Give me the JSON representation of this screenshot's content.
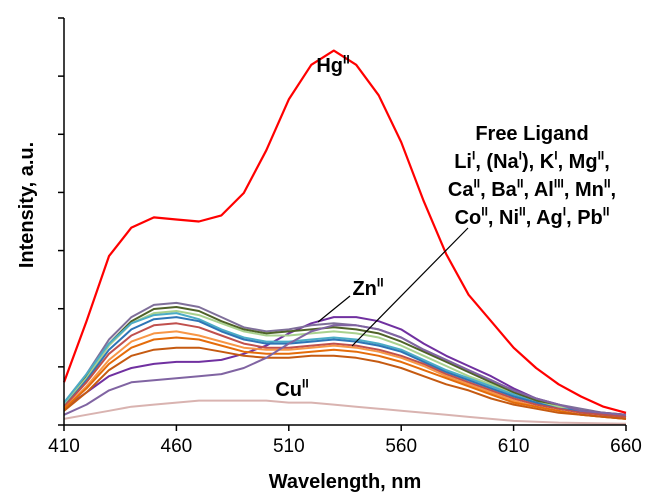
{
  "chart_data": {
    "type": "line",
    "xlabel": "Wavelength, nm",
    "ylabel": "Intensity, a.u.",
    "xlim": [
      410,
      660
    ],
    "ylim": [
      0,
      100
    ],
    "x_ticks": [
      "410",
      "460",
      "510",
      "560",
      "610",
      "660"
    ],
    "y_ticks_labeled": false,
    "grid": false,
    "legend": "none",
    "annotations": {
      "hg": {
        "base": "Hg",
        "sup": "II"
      },
      "zn": {
        "base": "Zn",
        "sup": "II"
      },
      "cu": {
        "base": "Cu",
        "sup": "II"
      },
      "group_line1": "Free Ligand",
      "group_line2": [
        {
          "base": "Li",
          "sup": "I"
        },
        {
          "base": ", (Na",
          "sup": "I"
        },
        {
          "base": "), K",
          "sup": "I"
        },
        {
          "base": ", Mg",
          "sup": "II"
        },
        {
          "base": ",",
          "sup": ""
        }
      ],
      "group_line3": [
        {
          "base": "Ca",
          "sup": "II"
        },
        {
          "base": ", Ba",
          "sup": "II"
        },
        {
          "base": ", Al",
          "sup": "III"
        },
        {
          "base": ", Mn",
          "sup": "II"
        },
        {
          "base": ",",
          "sup": ""
        }
      ],
      "group_line4": [
        {
          "base": "Co",
          "sup": "II"
        },
        {
          "base": ", Ni",
          "sup": "II"
        },
        {
          "base": ", Ag",
          "sup": "I"
        },
        {
          "base": ", Pb",
          "sup": "II"
        }
      ]
    },
    "x": [
      410,
      420,
      430,
      440,
      450,
      460,
      470,
      480,
      490,
      500,
      510,
      520,
      530,
      540,
      550,
      560,
      570,
      580,
      590,
      600,
      610,
      620,
      630,
      640,
      650,
      660
    ],
    "series": [
      {
        "color": "#ff0000",
        "values": [
          10.5,
          25.5,
          41.5,
          48.5,
          51.0,
          50.5,
          50.0,
          51.5,
          57.0,
          67.5,
          80.0,
          88.5,
          92.0,
          88.5,
          81.0,
          69.5,
          55.0,
          42.0,
          32.0,
          25.5,
          19.0,
          14.0,
          10.0,
          7.0,
          4.5,
          3.0
        ]
      },
      {
        "color": "#7030a0",
        "values": [
          4.0,
          8.0,
          12.0,
          14.0,
          15.0,
          15.5,
          15.5,
          16.0,
          17.5,
          19.5,
          22.5,
          25.0,
          26.5,
          26.5,
          25.5,
          23.5,
          20.0,
          17.0,
          14.5,
          12.0,
          9.0,
          6.5,
          5.0,
          3.5,
          2.5,
          2.0
        ]
      },
      {
        "color": "#7f6f9a",
        "values": [
          5.5,
          12.5,
          21.0,
          26.5,
          29.5,
          30.0,
          29.0,
          26.5,
          24.0,
          23.0,
          23.5,
          24.5,
          25.0,
          24.5,
          23.5,
          21.5,
          18.5,
          16.0,
          13.5,
          11.0,
          8.5,
          6.5,
          5.0,
          4.0,
          3.0,
          2.5
        ]
      },
      {
        "color": "#4f6228",
        "values": [
          5.0,
          12.0,
          20.0,
          25.5,
          28.5,
          29.0,
          28.0,
          25.5,
          23.5,
          22.5,
          23.0,
          23.5,
          24.0,
          23.5,
          22.5,
          20.5,
          18.0,
          15.5,
          13.0,
          10.5,
          8.0,
          6.0,
          4.5,
          3.5,
          3.0,
          2.5
        ]
      },
      {
        "color": "#a9d18e",
        "values": [
          5.0,
          11.5,
          19.5,
          25.0,
          27.5,
          28.0,
          27.0,
          25.0,
          23.0,
          22.0,
          22.0,
          22.5,
          23.0,
          22.5,
          21.5,
          19.5,
          17.0,
          14.5,
          12.0,
          10.0,
          7.5,
          5.5,
          4.5,
          3.5,
          2.5,
          2.0
        ]
      },
      {
        "color": "#4bacc6",
        "values": [
          5.5,
          12.5,
          20.0,
          25.0,
          27.0,
          27.5,
          26.0,
          23.5,
          21.5,
          20.5,
          20.5,
          21.0,
          21.5,
          21.0,
          20.0,
          18.5,
          16.0,
          13.5,
          11.5,
          9.5,
          7.5,
          5.5,
          4.0,
          3.5,
          2.5,
          2.0
        ]
      },
      {
        "color": "#2e75b6",
        "values": [
          4.5,
          11.0,
          18.5,
          23.5,
          26.0,
          26.5,
          25.5,
          23.0,
          21.0,
          20.0,
          20.0,
          20.5,
          21.0,
          20.5,
          19.5,
          18.0,
          15.5,
          13.0,
          11.0,
          9.0,
          7.0,
          5.5,
          4.0,
          3.5,
          2.5,
          2.0
        ]
      },
      {
        "color": "#c0504d",
        "values": [
          4.5,
          10.5,
          17.5,
          22.0,
          24.5,
          25.0,
          24.0,
          22.0,
          20.0,
          19.0,
          19.0,
          19.5,
          20.0,
          19.5,
          18.5,
          17.0,
          15.0,
          12.5,
          10.5,
          8.5,
          6.5,
          5.0,
          4.0,
          3.0,
          2.5,
          2.0
        ]
      },
      {
        "color": "#f79646",
        "values": [
          4.0,
          9.5,
          16.0,
          20.5,
          22.5,
          23.0,
          22.0,
          20.5,
          19.0,
          18.5,
          18.5,
          19.0,
          19.5,
          19.0,
          18.0,
          16.5,
          14.5,
          12.0,
          10.0,
          8.0,
          6.0,
          4.5,
          3.5,
          2.5,
          2.0,
          1.5
        ]
      },
      {
        "color": "#e46c0a",
        "values": [
          4.0,
          9.0,
          15.0,
          19.0,
          21.0,
          21.5,
          21.0,
          19.5,
          18.0,
          17.5,
          17.5,
          18.0,
          18.5,
          18.0,
          17.0,
          15.5,
          13.5,
          11.5,
          9.5,
          7.5,
          5.5,
          4.5,
          3.5,
          2.5,
          2.0,
          1.5
        ]
      },
      {
        "color": "#c55a11",
        "values": [
          3.5,
          8.0,
          13.5,
          17.0,
          18.5,
          19.0,
          19.0,
          18.0,
          17.0,
          16.5,
          16.5,
          17.0,
          17.0,
          16.5,
          15.5,
          14.0,
          12.0,
          10.0,
          8.5,
          6.5,
          5.0,
          4.0,
          3.0,
          2.5,
          2.0,
          1.5
        ]
      },
      {
        "color": "#8064a2",
        "values": [
          2.5,
          5.0,
          8.5,
          10.5,
          11.0,
          11.5,
          12.0,
          12.5,
          14.0,
          16.5,
          20.0,
          23.0,
          24.5,
          24.5,
          23.5,
          21.5,
          18.5,
          16.0,
          13.5,
          11.0,
          8.5,
          6.5,
          5.0,
          3.5,
          3.0,
          2.5
        ]
      },
      {
        "color": "#d9b3b0",
        "values": [
          1.5,
          2.5,
          3.5,
          4.5,
          5.0,
          5.5,
          6.0,
          6.0,
          6.0,
          6.0,
          5.5,
          5.5,
          5.0,
          4.5,
          4.0,
          3.5,
          3.0,
          2.5,
          2.0,
          1.5,
          1.0,
          0.8,
          0.6,
          0.5,
          0.4,
          0.3
        ]
      }
    ]
  }
}
